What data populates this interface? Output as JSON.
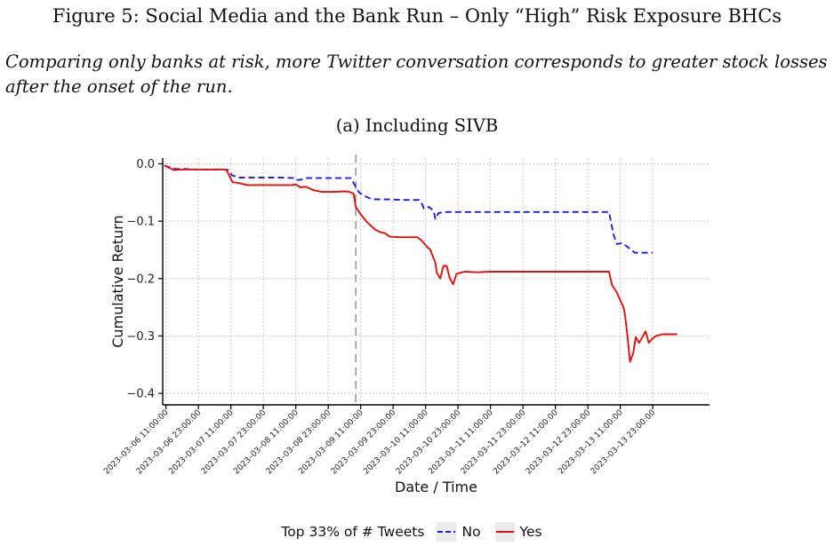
{
  "figure": {
    "title": "Figure 5: Social Media and the Bank Run – Only “High” Risk Exposure BHCs",
    "caption": "Comparing only banks at risk, more Twitter conversation corresponds to greater stock losses after the onset of the run.",
    "panel_title": "(a) Including SIVB"
  },
  "chart_data": {
    "type": "line",
    "xlabel": "Date / Time",
    "ylabel": "Cumulative Return",
    "ylim": [
      -0.42,
      0.01
    ],
    "yticks": [
      0.0,
      -0.1,
      -0.2,
      -0.3,
      -0.4
    ],
    "ytick_labels": [
      "0.0",
      "−0.1",
      "−0.2",
      "−0.3",
      "−0.4"
    ],
    "xrange": [
      -0.1,
      16.75
    ],
    "xticks": [
      "2023–03–06 11:00:00",
      "2023–03–06 23:00:00",
      "2023–03–07 11:00:00",
      "2023–03–07 23:00:00",
      "2023–03–08 11:00:00",
      "2023–03–08 23:00:00",
      "2023–03–09 11:00:00",
      "2023–03–09 23:00:00",
      "2023–03–10 11:00:00",
      "2023–03–10 23:00:00",
      "2023–03–11 11:00:00",
      "2023–03–11 23:00:00",
      "2023–03–12 11:00:00",
      "2023–03–12 23:00:00",
      "2023–03–13 11:00:00",
      "2023–03–13 23:00:00"
    ],
    "vline_x": 5.85,
    "grid": true,
    "legend": {
      "title": "Top 33% of # Tweets",
      "position": "bottom"
    },
    "series": [
      {
        "name": "No",
        "color": "#1f1fd6",
        "dash": "dashed",
        "points": [
          [
            -0.05,
            -0.003
          ],
          [
            0.1,
            -0.006
          ],
          [
            0.3,
            -0.009
          ],
          [
            0.6,
            -0.009
          ],
          [
            1.0,
            -0.01
          ],
          [
            1.4,
            -0.01
          ],
          [
            1.8,
            -0.01
          ],
          [
            1.93,
            -0.011
          ],
          [
            2.03,
            -0.02
          ],
          [
            2.25,
            -0.024
          ],
          [
            2.6,
            -0.024
          ],
          [
            3.0,
            -0.024
          ],
          [
            3.5,
            -0.024
          ],
          [
            3.95,
            -0.025
          ],
          [
            4.0,
            -0.028
          ],
          [
            4.15,
            -0.028
          ],
          [
            4.25,
            -0.025
          ],
          [
            4.6,
            -0.025
          ],
          [
            5.0,
            -0.025
          ],
          [
            5.4,
            -0.025
          ],
          [
            5.7,
            -0.025
          ],
          [
            5.8,
            -0.035
          ],
          [
            5.95,
            -0.05
          ],
          [
            6.15,
            -0.057
          ],
          [
            6.35,
            -0.062
          ],
          [
            6.8,
            -0.062
          ],
          [
            7.3,
            -0.063
          ],
          [
            7.8,
            -0.063
          ],
          [
            7.9,
            -0.071
          ],
          [
            7.95,
            -0.078
          ],
          [
            8.1,
            -0.075
          ],
          [
            8.25,
            -0.082
          ],
          [
            8.3,
            -0.096
          ],
          [
            8.4,
            -0.086
          ],
          [
            8.6,
            -0.084
          ],
          [
            9.0,
            -0.084
          ],
          [
            10.0,
            -0.084
          ],
          [
            11.0,
            -0.084
          ],
          [
            12.0,
            -0.084
          ],
          [
            13.0,
            -0.084
          ],
          [
            13.65,
            -0.084
          ],
          [
            13.8,
            -0.125
          ],
          [
            13.9,
            -0.14
          ],
          [
            14.05,
            -0.138
          ],
          [
            14.25,
            -0.146
          ],
          [
            14.45,
            -0.155
          ],
          [
            14.8,
            -0.155
          ],
          [
            15.0,
            -0.155
          ]
        ]
      },
      {
        "name": "Yes",
        "color": "#e01010",
        "dash": "solid",
        "points": [
          [
            -0.05,
            -0.003
          ],
          [
            0.1,
            -0.007
          ],
          [
            0.25,
            -0.011
          ],
          [
            0.5,
            -0.01
          ],
          [
            0.8,
            -0.01
          ],
          [
            1.2,
            -0.01
          ],
          [
            1.6,
            -0.01
          ],
          [
            1.85,
            -0.01
          ],
          [
            1.95,
            -0.02
          ],
          [
            2.05,
            -0.032
          ],
          [
            2.2,
            -0.033
          ],
          [
            2.35,
            -0.035
          ],
          [
            2.5,
            -0.037
          ],
          [
            3.0,
            -0.037
          ],
          [
            3.5,
            -0.037
          ],
          [
            3.9,
            -0.037
          ],
          [
            4.0,
            -0.036
          ],
          [
            4.15,
            -0.041
          ],
          [
            4.3,
            -0.04
          ],
          [
            4.55,
            -0.046
          ],
          [
            4.8,
            -0.049
          ],
          [
            5.2,
            -0.049
          ],
          [
            5.5,
            -0.048
          ],
          [
            5.65,
            -0.049
          ],
          [
            5.78,
            -0.052
          ],
          [
            5.85,
            -0.075
          ],
          [
            6.0,
            -0.088
          ],
          [
            6.2,
            -0.102
          ],
          [
            6.45,
            -0.115
          ],
          [
            6.6,
            -0.119
          ],
          [
            6.75,
            -0.121
          ],
          [
            6.9,
            -0.127
          ],
          [
            7.2,
            -0.128
          ],
          [
            7.5,
            -0.128
          ],
          [
            7.75,
            -0.128
          ],
          [
            7.9,
            -0.135
          ],
          [
            8.05,
            -0.145
          ],
          [
            8.15,
            -0.15
          ],
          [
            8.2,
            -0.158
          ],
          [
            8.3,
            -0.172
          ],
          [
            8.35,
            -0.19
          ],
          [
            8.45,
            -0.2
          ],
          [
            8.55,
            -0.178
          ],
          [
            8.65,
            -0.178
          ],
          [
            8.75,
            -0.2
          ],
          [
            8.85,
            -0.21
          ],
          [
            8.95,
            -0.192
          ],
          [
            9.2,
            -0.188
          ],
          [
            9.6,
            -0.189
          ],
          [
            10.0,
            -0.188
          ],
          [
            11.0,
            -0.188
          ],
          [
            12.0,
            -0.188
          ],
          [
            13.0,
            -0.188
          ],
          [
            13.65,
            -0.188
          ],
          [
            13.75,
            -0.212
          ],
          [
            13.9,
            -0.225
          ],
          [
            14.0,
            -0.238
          ],
          [
            14.1,
            -0.25
          ],
          [
            14.15,
            -0.265
          ],
          [
            14.22,
            -0.3
          ],
          [
            14.3,
            -0.345
          ],
          [
            14.4,
            -0.33
          ],
          [
            14.48,
            -0.302
          ],
          [
            14.58,
            -0.312
          ],
          [
            14.7,
            -0.3
          ],
          [
            14.78,
            -0.292
          ],
          [
            14.88,
            -0.312
          ],
          [
            14.98,
            -0.305
          ],
          [
            15.1,
            -0.3
          ],
          [
            15.3,
            -0.297
          ],
          [
            15.6,
            -0.297
          ],
          [
            15.75,
            -0.297
          ]
        ]
      }
    ]
  }
}
